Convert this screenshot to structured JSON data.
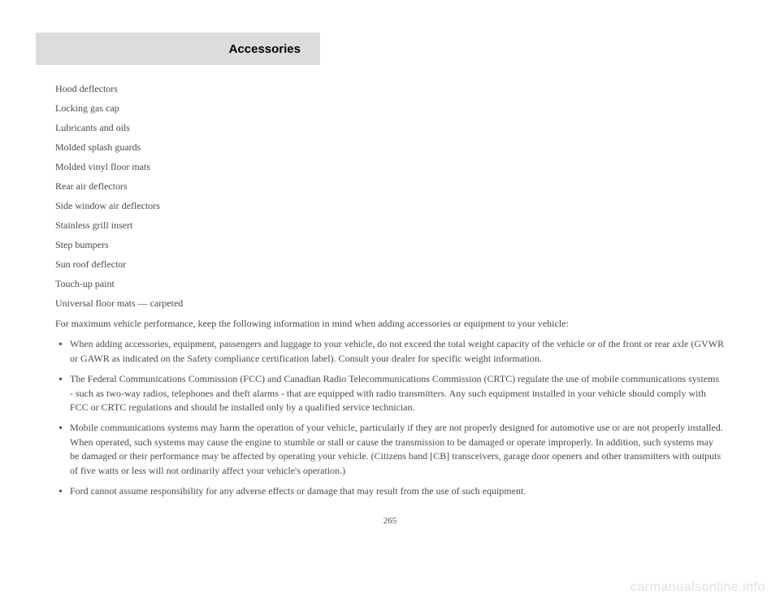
{
  "header": {
    "title": "Accessories"
  },
  "accessories": [
    "Hood deflectors",
    "Locking gas cap",
    "Lubricants and oils",
    "Molded splash guards",
    "Molded vinyl floor mats",
    "Rear air deflectors",
    "Side window air deflectors",
    "Stainless grill insert",
    "Step bumpers",
    "Sun roof deflector",
    "Touch-up paint",
    "Universal floor mats — carpeted"
  ],
  "intro_para": "For maximum vehicle performance, keep the following information in mind when adding accessories or equipment to your vehicle:",
  "bullets": [
    "When adding accessories, equipment, passengers and luggage to your vehicle, do not exceed the total weight capacity of the vehicle or of the front or rear axle (GVWR or GAWR as indicated on the Safety compliance certification label). Consult your dealer for specific weight information.",
    "The Federal Communications Commission (FCC) and Canadian Radio Telecommunications Commission (CRTC) regulate the use of mobile communications systems - such as two-way radios, telephones and theft alarms - that are equipped with radio transmitters. Any such equipment installed in your vehicle should comply with FCC or CRTC regulations and should be installed only by a qualified service technician.",
    "Mobile communications systems may harm the operation of your vehicle, particularly if they are not properly designed for automotive use or are not properly installed. When operated, such systems may cause the engine to stumble or stall or cause the transmission to be damaged or operate improperly. In addition, such systems may be damaged or their performance may be affected by operating your vehicle. (Citizens band [CB] transceivers, garage door openers and other transmitters with outputs of five watts or less will not ordinarily affect your vehicle's operation.)",
    "Ford cannot assume responsibility for any adverse effects or damage that may result from the use of such equipment."
  ],
  "page_number": "265",
  "watermark": "carmanualsonline.info"
}
